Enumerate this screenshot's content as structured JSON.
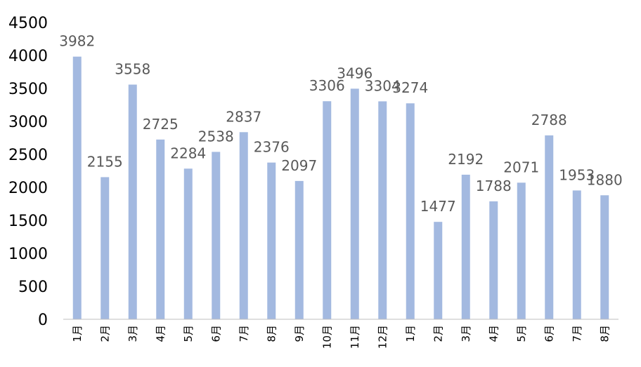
{
  "chart_data": {
    "type": "bar",
    "categories": [
      "1月",
      "2月",
      "3月",
      "4月",
      "5月",
      "6月",
      "7月",
      "8月",
      "9月",
      "10月",
      "11月",
      "12月",
      "1月",
      "2月",
      "3月",
      "4月",
      "5月",
      "6月",
      "7月",
      "8月"
    ],
    "values": [
      3982,
      2155,
      3558,
      2725,
      2284,
      2538,
      2837,
      2376,
      2097,
      3306,
      3496,
      3304,
      3274,
      1477,
      2192,
      1788,
      2071,
      2788,
      1953,
      1880
    ],
    "title": "",
    "xlabel": "",
    "ylabel": "",
    "ylim": [
      0,
      4500
    ],
    "yticks": [
      "0",
      "500",
      "1000",
      "1500",
      "2000",
      "2500",
      "3000",
      "3500",
      "4000",
      "4500"
    ],
    "grid": false,
    "legend": "none",
    "colors": {
      "bar": "#a3b9e0",
      "axis": "#bfbfbf",
      "data_label": "#595959",
      "tick": "#000000"
    }
  }
}
